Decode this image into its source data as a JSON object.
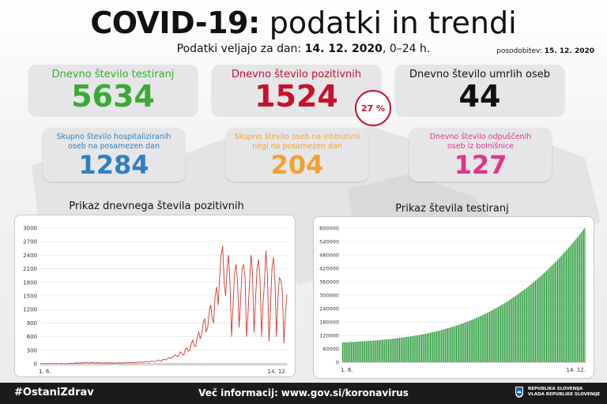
{
  "header": {
    "title_bold": "COVID-19:",
    "title_light": "podatki in trendi",
    "subtitle_prefix": "Podatki veljajo za dan:",
    "subtitle_date": "14. 12. 2020",
    "subtitle_suffix": ", 0–24 h.",
    "update_label": "posodobitev:",
    "update_date": "15. 12. 2020"
  },
  "stats": {
    "tests": {
      "label": "Dnevno število testiranj",
      "value": "5634",
      "color": "#3aaa35"
    },
    "positive": {
      "label": "Dnevno število pozitivnih",
      "value": "1524",
      "color": "#c8102e"
    },
    "deaths": {
      "label": "Dnevno število umrlih oseb",
      "value": "44",
      "color": "#111111"
    },
    "positive_pct": "27 %",
    "hospital": {
      "label_line1": "Skupno število hospitaliziranih",
      "label_line2": "oseb na posamezen dan",
      "value": "1284",
      "color": "#2f7fc1"
    },
    "icu": {
      "label_line1": "Skupno število oseb na intenzivni",
      "label_line2": "negi na posamezen dan",
      "value": "204",
      "color": "#f2a12e"
    },
    "discharged": {
      "label_line1": "Dnevno število odpuščenih",
      "label_line2": "oseb iz bolnišnice",
      "value": "127",
      "color": "#e0348c"
    }
  },
  "chart_data": [
    {
      "type": "line",
      "title": "Prikaz dnevnega števila pozitivnih",
      "x_start_label": "1. 6.",
      "x_end_label": "14. 12.",
      "ylim": [
        0,
        3000
      ],
      "yticks": [
        0,
        300,
        600,
        900,
        1200,
        1500,
        1800,
        2100,
        2400,
        2700,
        3000
      ],
      "ytick_labels": [
        "0",
        "300",
        "600",
        "900",
        "1200",
        "1500",
        "1800",
        "2100",
        "2400",
        "2700",
        "3000"
      ],
      "color": "#d03a2f",
      "series": [
        {
          "values": [
            5,
            3,
            2,
            4,
            3,
            6,
            4,
            2,
            5,
            3,
            4,
            6,
            3,
            2,
            5,
            4,
            3,
            2,
            6,
            5,
            8,
            10,
            12,
            15,
            18,
            20,
            14,
            22,
            18,
            25,
            20,
            30,
            22,
            18,
            26,
            28,
            20,
            15,
            25,
            22,
            18,
            20,
            16,
            14,
            22,
            18,
            14,
            20,
            15,
            18,
            12,
            16,
            22,
            18,
            14,
            24,
            20,
            16,
            30,
            26,
            22,
            18,
            28,
            30,
            24,
            35,
            30,
            40,
            36,
            32,
            45,
            50,
            42,
            38,
            55,
            60,
            50,
            48,
            70,
            80,
            65,
            60,
            90,
            100,
            85,
            110,
            140,
            120,
            130,
            160,
            200,
            180,
            150,
            230,
            260,
            210,
            190,
            320,
            350,
            280,
            300,
            450,
            520,
            400,
            380,
            600,
            700,
            560,
            650,
            900,
            1000,
            700,
            800,
            1150,
            1300,
            1000,
            900,
            1500,
            1700,
            1300,
            1900,
            2400,
            2600,
            1800,
            1500,
            2100,
            2400,
            1700,
            600,
            1300,
            2000,
            2200,
            1800,
            800,
            1400,
            2100,
            2200,
            1900,
            600,
            1100,
            1800,
            2400,
            2000,
            700,
            1400,
            2100,
            2300,
            1900,
            600,
            1300,
            1800,
            2500,
            1950,
            500,
            1200,
            2100,
            2350,
            1800,
            600,
            1450,
            1900,
            1850,
            1600,
            450,
            1100,
            1524
          ]
        }
      ]
    },
    {
      "type": "bar",
      "title": "Prikaz števila testiranj",
      "x_start_label": "1. 6.",
      "x_end_label": "14. 12.",
      "ylim": [
        0,
        600000
      ],
      "yticks": [
        0,
        60000,
        120000,
        180000,
        240000,
        300000,
        360000,
        420000,
        480000,
        540000,
        600000
      ],
      "ytick_labels": [
        "0",
        "60000",
        "120000",
        "180000",
        "240000",
        "300000",
        "360000",
        "420000",
        "480000",
        "540000",
        "600000"
      ],
      "color": "#2e9e3e",
      "series": [
        {
          "start_value": 88000,
          "end_value": 601000
        }
      ]
    }
  ],
  "footer": {
    "hashtag": "#OstaniZdrav",
    "info_prefix": "Več informacij:",
    "info_link": "www.gov.si/koronavirus",
    "gov_line1": "REPUBLIKA SLOVENIJA",
    "gov_line2": "VLADA REPUBLIKE SLOVENIJE"
  }
}
